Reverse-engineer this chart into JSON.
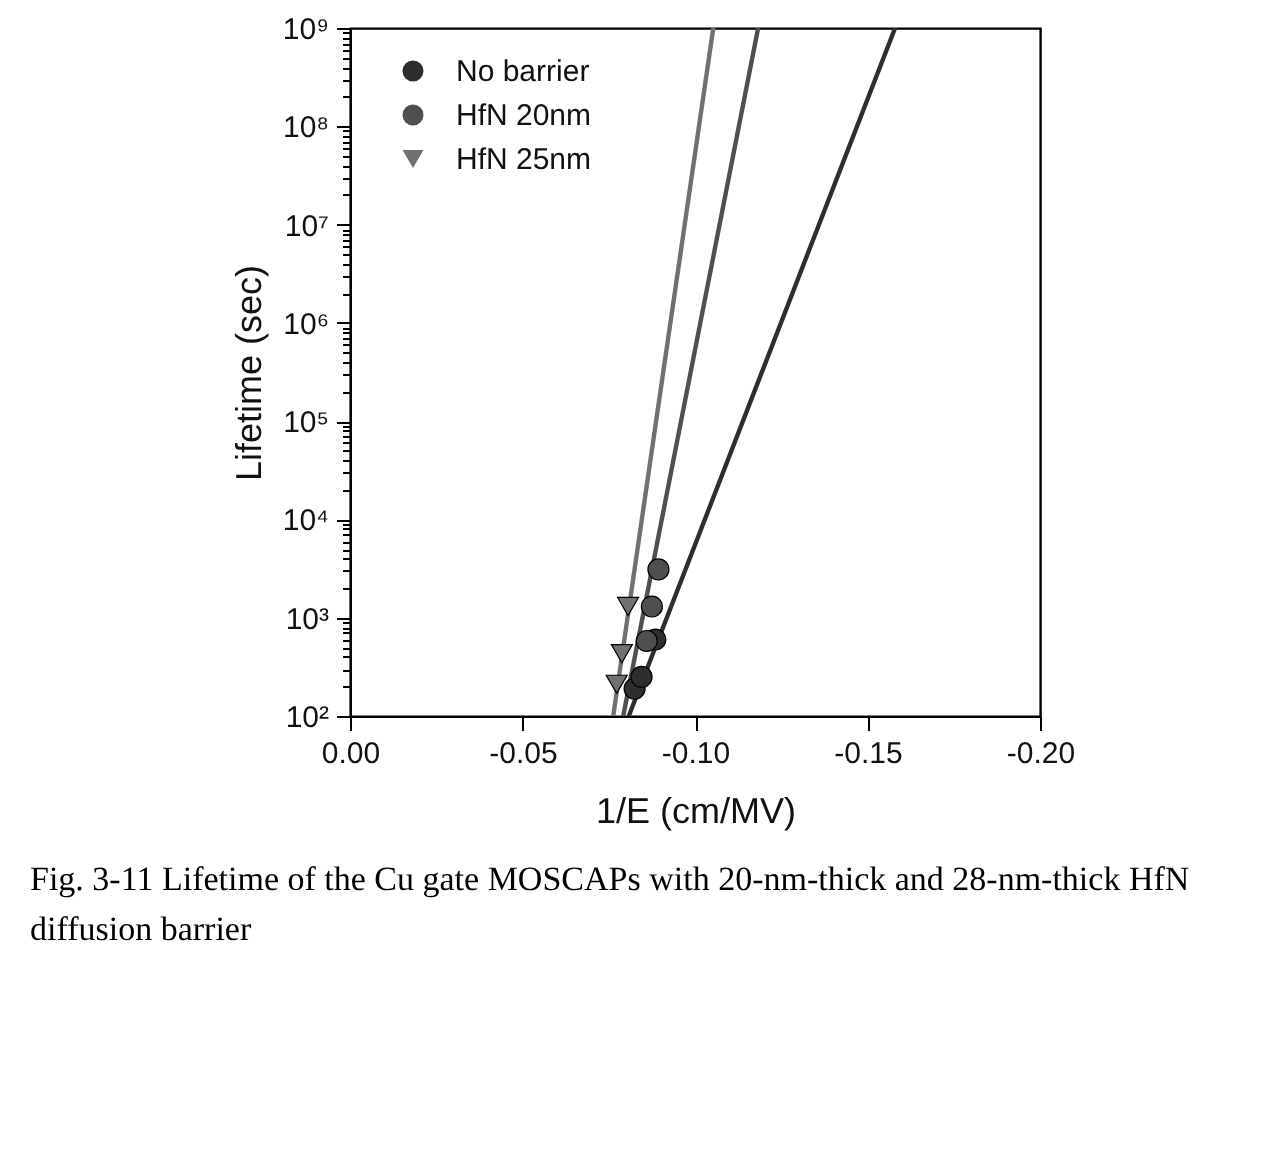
{
  "chart_data": {
    "type": "scatter",
    "xlabel": "1/E (cm/MV)",
    "ylabel": "Lifetime (sec)",
    "annotations": [
      "Fig. 3-11 Lifetime of the Cu gate MOSCAPs with 20-nm-thick and 28-nm-thick HfN diffusion barrier"
    ],
    "xlim": [
      0,
      -0.2
    ],
    "xticks": [
      {
        "value": 0,
        "label": "0.00"
      },
      {
        "value": -0.05,
        "label": "-0.05"
      },
      {
        "value": -0.1,
        "label": "-0.10"
      },
      {
        "value": -0.15,
        "label": "-0.15"
      },
      {
        "value": -0.2,
        "label": "-0.20"
      }
    ],
    "ylim": [
      100,
      1000000000
    ],
    "log": "y",
    "yticks": [
      {
        "value": 100,
        "label": "10²"
      },
      {
        "value": 200,
        "label": null
      },
      {
        "value": 300,
        "label": null
      },
      {
        "value": 400,
        "label": null
      },
      {
        "value": 500,
        "label": null
      },
      {
        "value": 600,
        "label": null
      },
      {
        "value": 700,
        "label": null
      },
      {
        "value": 800,
        "label": null
      },
      {
        "value": 900,
        "label": null
      },
      {
        "value": 1000,
        "label": "10³"
      },
      {
        "value": 2000,
        "label": null
      },
      {
        "value": 3000,
        "label": null
      },
      {
        "value": 4000,
        "label": null
      },
      {
        "value": 5000,
        "label": null
      },
      {
        "value": 6000,
        "label": null
      },
      {
        "value": 7000,
        "label": null
      },
      {
        "value": 8000,
        "label": null
      },
      {
        "value": 9000,
        "label": null
      },
      {
        "value": 10000,
        "label": "10⁴"
      },
      {
        "value": 20000,
        "label": null
      },
      {
        "value": 30000,
        "label": null
      },
      {
        "value": 40000,
        "label": null
      },
      {
        "value": 50000,
        "label": null
      },
      {
        "value": 60000,
        "label": null
      },
      {
        "value": 70000,
        "label": null
      },
      {
        "value": 80000,
        "label": null
      },
      {
        "value": 90000,
        "label": null
      },
      {
        "value": 100000,
        "label": "10⁵"
      },
      {
        "value": 200000,
        "label": null
      },
      {
        "value": 300000,
        "label": null
      },
      {
        "value": 400000,
        "label": null
      },
      {
        "value": 500000,
        "label": null
      },
      {
        "value": 600000,
        "label": null
      },
      {
        "value": 700000,
        "label": null
      },
      {
        "value": 800000,
        "label": null
      },
      {
        "value": 900000,
        "label": null
      },
      {
        "value": 1000000,
        "label": "10⁶"
      },
      {
        "value": 2000000,
        "label": null
      },
      {
        "value": 3000000,
        "label": null
      },
      {
        "value": 4000000,
        "label": null
      },
      {
        "value": 5000000,
        "label": null
      },
      {
        "value": 6000000,
        "label": null
      },
      {
        "value": 7000000,
        "label": null
      },
      {
        "value": 8000000,
        "label": null
      },
      {
        "value": 9000000,
        "label": null
      },
      {
        "value": 10000000,
        "label": "10⁷"
      },
      {
        "value": 20000000,
        "label": null
      },
      {
        "value": 30000000,
        "label": null
      },
      {
        "value": 40000000,
        "label": null
      },
      {
        "value": 50000000,
        "label": null
      },
      {
        "value": 60000000,
        "label": null
      },
      {
        "value": 70000000,
        "label": null
      },
      {
        "value": 80000000,
        "label": null
      },
      {
        "value": 90000000,
        "label": null
      },
      {
        "value": 100000000,
        "label": "10⁸"
      },
      {
        "value": 200000000,
        "label": null
      },
      {
        "value": 300000000,
        "label": null
      },
      {
        "value": 400000000,
        "label": null
      },
      {
        "value": 500000000,
        "label": null
      },
      {
        "value": 600000000,
        "label": null
      },
      {
        "value": 700000000,
        "label": null
      },
      {
        "value": 800000000,
        "label": null
      },
      {
        "value": 900000000,
        "label": null
      },
      {
        "value": 1000000000,
        "label": "10⁹"
      }
    ],
    "legend": "top left",
    "series": [
      {
        "type": "line",
        "color": "#2e2e2e",
        "x": [
          -0.0808,
          -0.158
        ],
        "values": [
          100,
          1000000000
        ]
      },
      {
        "type": "line",
        "color": "#4f4f4f",
        "x": [
          -0.0792,
          -0.1183
        ],
        "values": [
          100,
          1000000000
        ]
      },
      {
        "type": "line",
        "color": "#707070",
        "x": [
          -0.0763,
          -0.1053
        ],
        "values": [
          100,
          1000000000
        ]
      },
      {
        "name": "No barrier",
        "color": "#2e2e2e",
        "marker": "circle",
        "x": [
          -0.0825,
          -0.0845,
          -0.0885
        ],
        "values": [
          190,
          250,
          600
        ]
      },
      {
        "name": "HfN 20nm",
        "color": "#4f4f4f",
        "marker": "circle",
        "x": [
          -0.086,
          -0.0875,
          -0.0894
        ],
        "values": [
          580,
          1300,
          3100
        ]
      },
      {
        "name": "HfN 25nm",
        "color": "#707070",
        "marker": "triangle",
        "x": [
          -0.0773,
          -0.0788,
          -0.0806
        ],
        "values": [
          210,
          430,
          1300
        ]
      }
    ]
  }
}
